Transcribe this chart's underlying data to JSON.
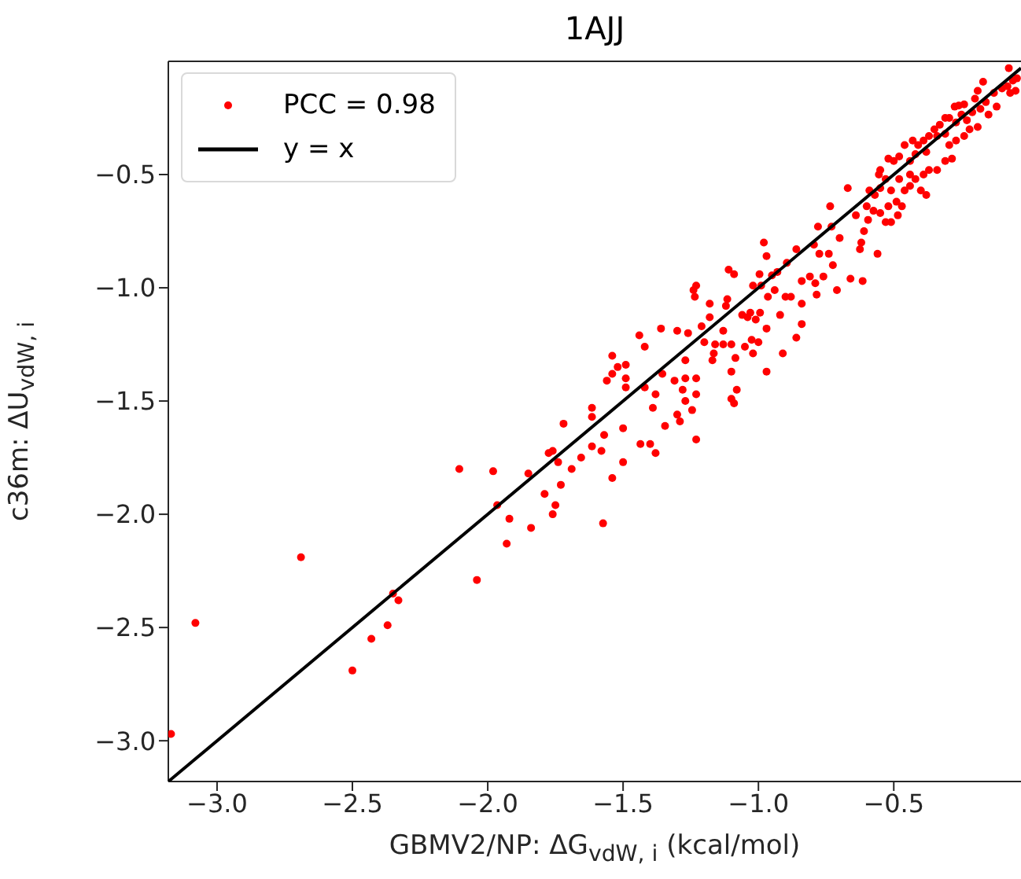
{
  "chart_data": {
    "type": "scatter",
    "title": "1AJJ",
    "xlabel": "GBMV2/NP: ΔG$_{vdW, i}$ (kcal/mol)",
    "ylabel": "c36m: ΔU$_{vdW, i}$",
    "xlim": [
      -3.18,
      -0.03
    ],
    "ylim": [
      -3.18,
      0.0
    ],
    "xticks": [
      {
        "value": -3.0,
        "label": "−3.0"
      },
      {
        "value": -2.5,
        "label": "−2.5"
      },
      {
        "value": -2.0,
        "label": "−2.0"
      },
      {
        "value": -1.5,
        "label": "−1.5"
      },
      {
        "value": -1.0,
        "label": "−1.0"
      },
      {
        "value": -0.5,
        "label": "−0.5"
      }
    ],
    "yticks": [
      {
        "value": -3.0,
        "label": "−3.0"
      },
      {
        "value": -2.5,
        "label": "−2.5"
      },
      {
        "value": -2.0,
        "label": "−2.0"
      },
      {
        "value": -1.5,
        "label": "−1.5"
      },
      {
        "value": -1.0,
        "label": "−1.0"
      },
      {
        "value": -0.5,
        "label": "−0.5"
      }
    ],
    "legend": "top left",
    "series": [
      {
        "name": "PCC = 0.98",
        "marker": "circle",
        "color": "#ff0000",
        "x": [
          -3.17,
          -3.08,
          -2.69,
          -2.5,
          -2.43,
          -2.37,
          -2.33,
          -2.35,
          -2.105,
          -2.04,
          -1.98,
          -1.965,
          -1.93,
          -1.92,
          -1.85,
          -1.84,
          -1.79,
          -1.775,
          -1.76,
          -1.74,
          -1.75,
          -1.76,
          -1.73,
          -1.574,
          -1.69,
          -1.655,
          -1.615,
          -1.58,
          -1.54,
          -1.5,
          -1.57,
          -1.5,
          -1.615,
          -1.615,
          -1.72,
          -1.436,
          -1.4,
          -1.38,
          -1.56,
          -1.54,
          -1.52,
          -1.49,
          -1.54,
          -1.49,
          -1.49,
          -1.44,
          -1.42,
          -1.36,
          -1.42,
          -1.39,
          -1.38,
          -1.345,
          -1.31,
          -1.355,
          -1.3,
          -1.26,
          -1.27,
          -1.27,
          -1.28,
          -1.27,
          -1.3,
          -1.29,
          -1.245,
          -1.23,
          -1.23,
          -1.23,
          -1.24,
          -1.23,
          -1.235,
          -1.21,
          -1.2,
          -1.18,
          -1.18,
          -1.16,
          -1.165,
          -1.17,
          -1.13,
          -1.13,
          -1.12,
          -1.11,
          -1.09,
          -1.115,
          -1.1,
          -1.085,
          -1.1,
          -1.08,
          -1.1,
          -1.09,
          -1.06,
          -1.05,
          -1.04,
          -1.03,
          -1.025,
          -1.02,
          -1.01,
          -1.0,
          -0.994,
          -1.02,
          -0.996,
          -0.98,
          -0.97,
          -0.99,
          -0.965,
          -0.97,
          -0.97,
          -0.95,
          -0.94,
          -0.93,
          -0.92,
          -0.91,
          -0.9,
          -0.895,
          -0.88,
          -0.86,
          -0.86,
          -0.84,
          -0.84,
          -0.84,
          -0.81,
          -0.795,
          -0.79,
          -0.785,
          -0.78,
          -0.775,
          -0.76,
          -0.74,
          -0.725,
          -0.71,
          -0.73,
          -0.735,
          -0.7,
          -0.67,
          -0.64,
          -0.6,
          -0.61,
          -0.62,
          -0.625,
          -0.66,
          -0.615,
          -0.56,
          -0.595,
          -0.575,
          -0.55,
          -0.57,
          -0.59,
          -0.555,
          -0.55,
          -0.53,
          -0.51,
          -0.52,
          -0.49,
          -0.485,
          -0.51,
          -0.53,
          -0.47,
          -0.46,
          -0.48,
          -0.5,
          -0.48,
          -0.52,
          -0.55,
          -0.44,
          -0.44,
          -0.42,
          -0.44,
          -0.46,
          -0.43,
          -0.41,
          -0.39,
          -0.42,
          -0.38,
          -0.37,
          -0.35,
          -0.34,
          -0.33,
          -0.31,
          -0.31,
          -0.295,
          -0.275,
          -0.26,
          -0.24,
          -0.25,
          -0.23,
          -0.27,
          -0.2,
          -0.21,
          -0.19,
          -0.22,
          -0.24,
          -0.27,
          -0.295,
          -0.285,
          -0.31,
          -0.34,
          -0.37,
          -0.39,
          -0.4,
          -0.38,
          -0.18,
          -0.16,
          -0.15,
          -0.13,
          -0.12,
          -0.1,
          -0.08,
          -0.07,
          -0.06,
          -0.05,
          -0.045,
          -0.075,
          -0.17,
          -0.19
        ],
        "values": [
          -2.97,
          -2.48,
          -2.19,
          -2.69,
          -2.55,
          -2.49,
          -2.38,
          -2.35,
          -1.8,
          -2.29,
          -1.81,
          -1.96,
          -2.13,
          -2.02,
          -1.82,
          -2.06,
          -1.91,
          -1.73,
          -1.72,
          -1.77,
          -1.96,
          -2.0,
          -1.87,
          -2.04,
          -1.8,
          -1.75,
          -1.7,
          -1.72,
          -1.84,
          -1.77,
          -1.65,
          -1.62,
          -1.57,
          -1.53,
          -1.6,
          -1.69,
          -1.69,
          -1.73,
          -1.41,
          -1.38,
          -1.35,
          -1.34,
          -1.3,
          -1.4,
          -1.44,
          -1.21,
          -1.26,
          -1.18,
          -1.44,
          -1.53,
          -1.47,
          -1.61,
          -1.41,
          -1.38,
          -1.19,
          -1.2,
          -1.32,
          -1.4,
          -1.45,
          -1.5,
          -1.56,
          -1.59,
          -1.54,
          -1.4,
          -1.47,
          -1.67,
          -1.01,
          -0.99,
          -1.04,
          -1.17,
          -1.24,
          -1.07,
          -1.13,
          -1.25,
          -1.29,
          -1.32,
          -1.25,
          -1.19,
          -1.08,
          -0.92,
          -0.94,
          -1.05,
          -1.25,
          -1.31,
          -1.37,
          -1.45,
          -1.49,
          -1.51,
          -1.12,
          -1.26,
          -1.13,
          -1.11,
          -1.23,
          -1.29,
          -1.14,
          -1.24,
          -1.11,
          -0.99,
          -0.94,
          -0.8,
          -0.86,
          -0.99,
          -1.04,
          -1.18,
          -1.37,
          -0.945,
          -1.01,
          -0.93,
          -1.12,
          -1.29,
          -1.04,
          -0.89,
          -1.04,
          -0.83,
          -1.22,
          -1.16,
          -0.97,
          -1.07,
          -0.95,
          -0.81,
          -0.98,
          -1.03,
          -0.73,
          -0.85,
          -0.95,
          -0.85,
          -0.9,
          -1.01,
          -0.73,
          -0.64,
          -0.78,
          -0.56,
          -0.68,
          -0.64,
          -0.75,
          -0.8,
          -0.83,
          -0.96,
          -0.97,
          -0.85,
          -0.7,
          -0.66,
          -0.67,
          -0.59,
          -0.57,
          -0.5,
          -0.48,
          -0.52,
          -0.57,
          -0.64,
          -0.62,
          -0.68,
          -0.71,
          -0.71,
          -0.64,
          -0.57,
          -0.52,
          -0.44,
          -0.42,
          -0.43,
          -0.56,
          -0.55,
          -0.5,
          -0.52,
          -0.44,
          -0.37,
          -0.35,
          -0.37,
          -0.35,
          -0.41,
          -0.4,
          -0.33,
          -0.3,
          -0.33,
          -0.28,
          -0.32,
          -0.25,
          -0.25,
          -0.2,
          -0.195,
          -0.19,
          -0.235,
          -0.26,
          -0.27,
          -0.165,
          -0.225,
          -0.29,
          -0.3,
          -0.33,
          -0.35,
          -0.37,
          -0.43,
          -0.44,
          -0.48,
          -0.48,
          -0.5,
          -0.57,
          -0.59,
          -0.21,
          -0.18,
          -0.235,
          -0.14,
          -0.2,
          -0.12,
          -0.11,
          -0.14,
          -0.085,
          -0.13,
          -0.075,
          -0.03,
          -0.09,
          -0.13
        ]
      },
      {
        "name": "y = x",
        "type": "line",
        "marker": "none",
        "line_style": "solid",
        "color": "#000000",
        "x": [
          -3.18,
          -0.03
        ],
        "values": [
          -3.18,
          -0.03
        ]
      }
    ]
  }
}
